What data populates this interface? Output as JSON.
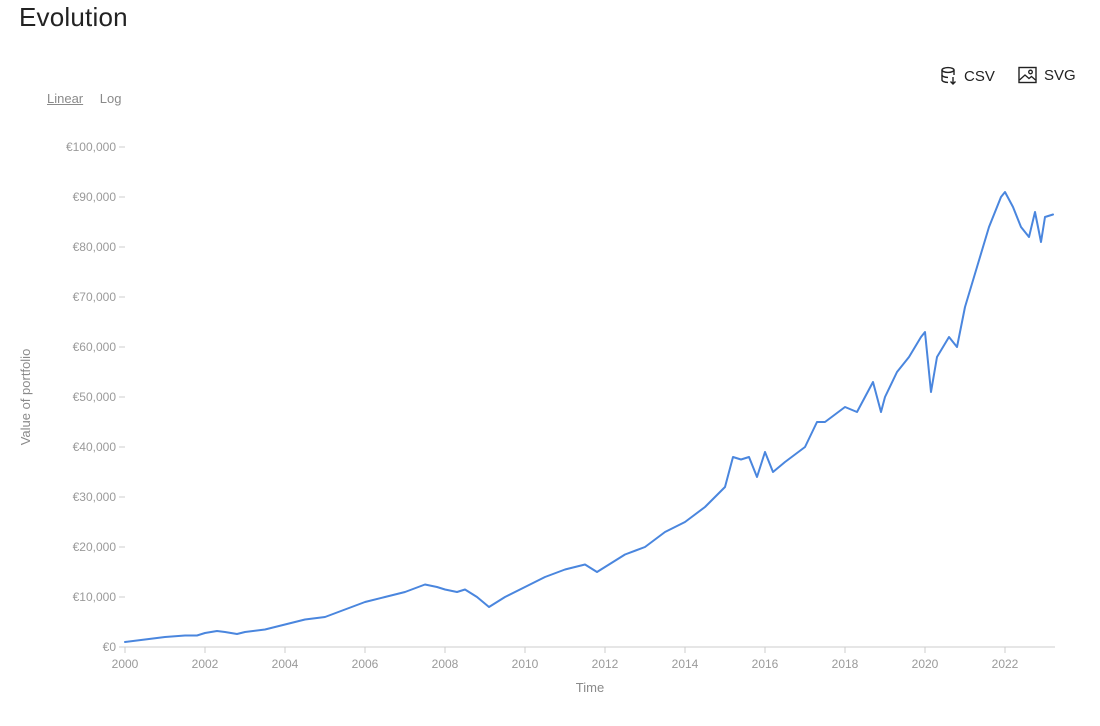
{
  "header": {
    "title": "Evolution"
  },
  "scale_toggle": {
    "linear_label": "Linear",
    "log_label": "Log",
    "active": "Linear"
  },
  "export": {
    "csv_label": "CSV",
    "svg_label": "SVG",
    "csv_icon": "database-download-icon",
    "svg_icon": "image-icon"
  },
  "colors": {
    "line": "#4a86de",
    "axis": "#cccccc",
    "tick_text": "#9a9a9a"
  },
  "chart_data": {
    "type": "line",
    "title": "Evolution",
    "xlabel": "Time",
    "ylabel": "Value of portfolio",
    "xlim": [
      2000,
      2023.25
    ],
    "ylim": [
      0,
      100000
    ],
    "x_ticks": [
      2000,
      2002,
      2004,
      2006,
      2008,
      2010,
      2012,
      2014,
      2016,
      2018,
      2020,
      2022
    ],
    "x_tick_labels": [
      "2000",
      "2002",
      "2004",
      "2006",
      "2008",
      "2010",
      "2012",
      "2014",
      "2016",
      "2018",
      "2020",
      "2022"
    ],
    "y_ticks": [
      0,
      10000,
      20000,
      30000,
      40000,
      50000,
      60000,
      70000,
      80000,
      90000,
      100000
    ],
    "y_tick_labels": [
      "€0",
      "€10,000",
      "€20,000",
      "€30,000",
      "€40,000",
      "€50,000",
      "€60,000",
      "€70,000",
      "€80,000",
      "€90,000",
      "€100,000"
    ],
    "grid": false,
    "series": [
      {
        "x": [
          2000.0,
          2000.5,
          2001.0,
          2001.5,
          2001.8,
          2002.0,
          2002.3,
          2002.5,
          2002.8,
          2003.0,
          2003.5,
          2004.0,
          2004.5,
          2005.0,
          2005.5,
          2006.0,
          2006.5,
          2007.0,
          2007.5,
          2007.8,
          2008.0,
          2008.3,
          2008.5,
          2008.8,
          2009.1,
          2009.5,
          2010.0,
          2010.5,
          2011.0,
          2011.5,
          2011.8,
          2012.0,
          2012.5,
          2013.0,
          2013.5,
          2014.0,
          2014.5,
          2015.0,
          2015.2,
          2015.4,
          2015.6,
          2015.8,
          2016.0,
          2016.2,
          2016.5,
          2017.0,
          2017.3,
          2017.5,
          2018.0,
          2018.3,
          2018.5,
          2018.7,
          2018.9,
          2019.0,
          2019.3,
          2019.6,
          2019.9,
          2020.0,
          2020.15,
          2020.3,
          2020.6,
          2020.8,
          2021.0,
          2021.3,
          2021.6,
          2021.9,
          2022.0,
          2022.2,
          2022.4,
          2022.6,
          2022.75,
          2022.9,
          2023.0,
          2023.2
        ],
        "y": [
          1000,
          1500,
          2000,
          2300,
          2300,
          2800,
          3200,
          3000,
          2600,
          3000,
          3500,
          4500,
          5500,
          6000,
          7500,
          9000,
          10000,
          11000,
          12500,
          12000,
          11500,
          11000,
          11500,
          10000,
          8000,
          10000,
          12000,
          14000,
          15500,
          16500,
          15000,
          16000,
          18500,
          20000,
          23000,
          25000,
          28000,
          32000,
          38000,
          37500,
          38000,
          34000,
          39000,
          35000,
          37000,
          40000,
          45000,
          45000,
          48000,
          47000,
          50000,
          53000,
          47000,
          50000,
          55000,
          58000,
          62000,
          63000,
          51000,
          58000,
          62000,
          60000,
          68000,
          76000,
          84000,
          90000,
          91000,
          88000,
          84000,
          82000,
          87000,
          81000,
          86000,
          86500
        ]
      }
    ]
  }
}
